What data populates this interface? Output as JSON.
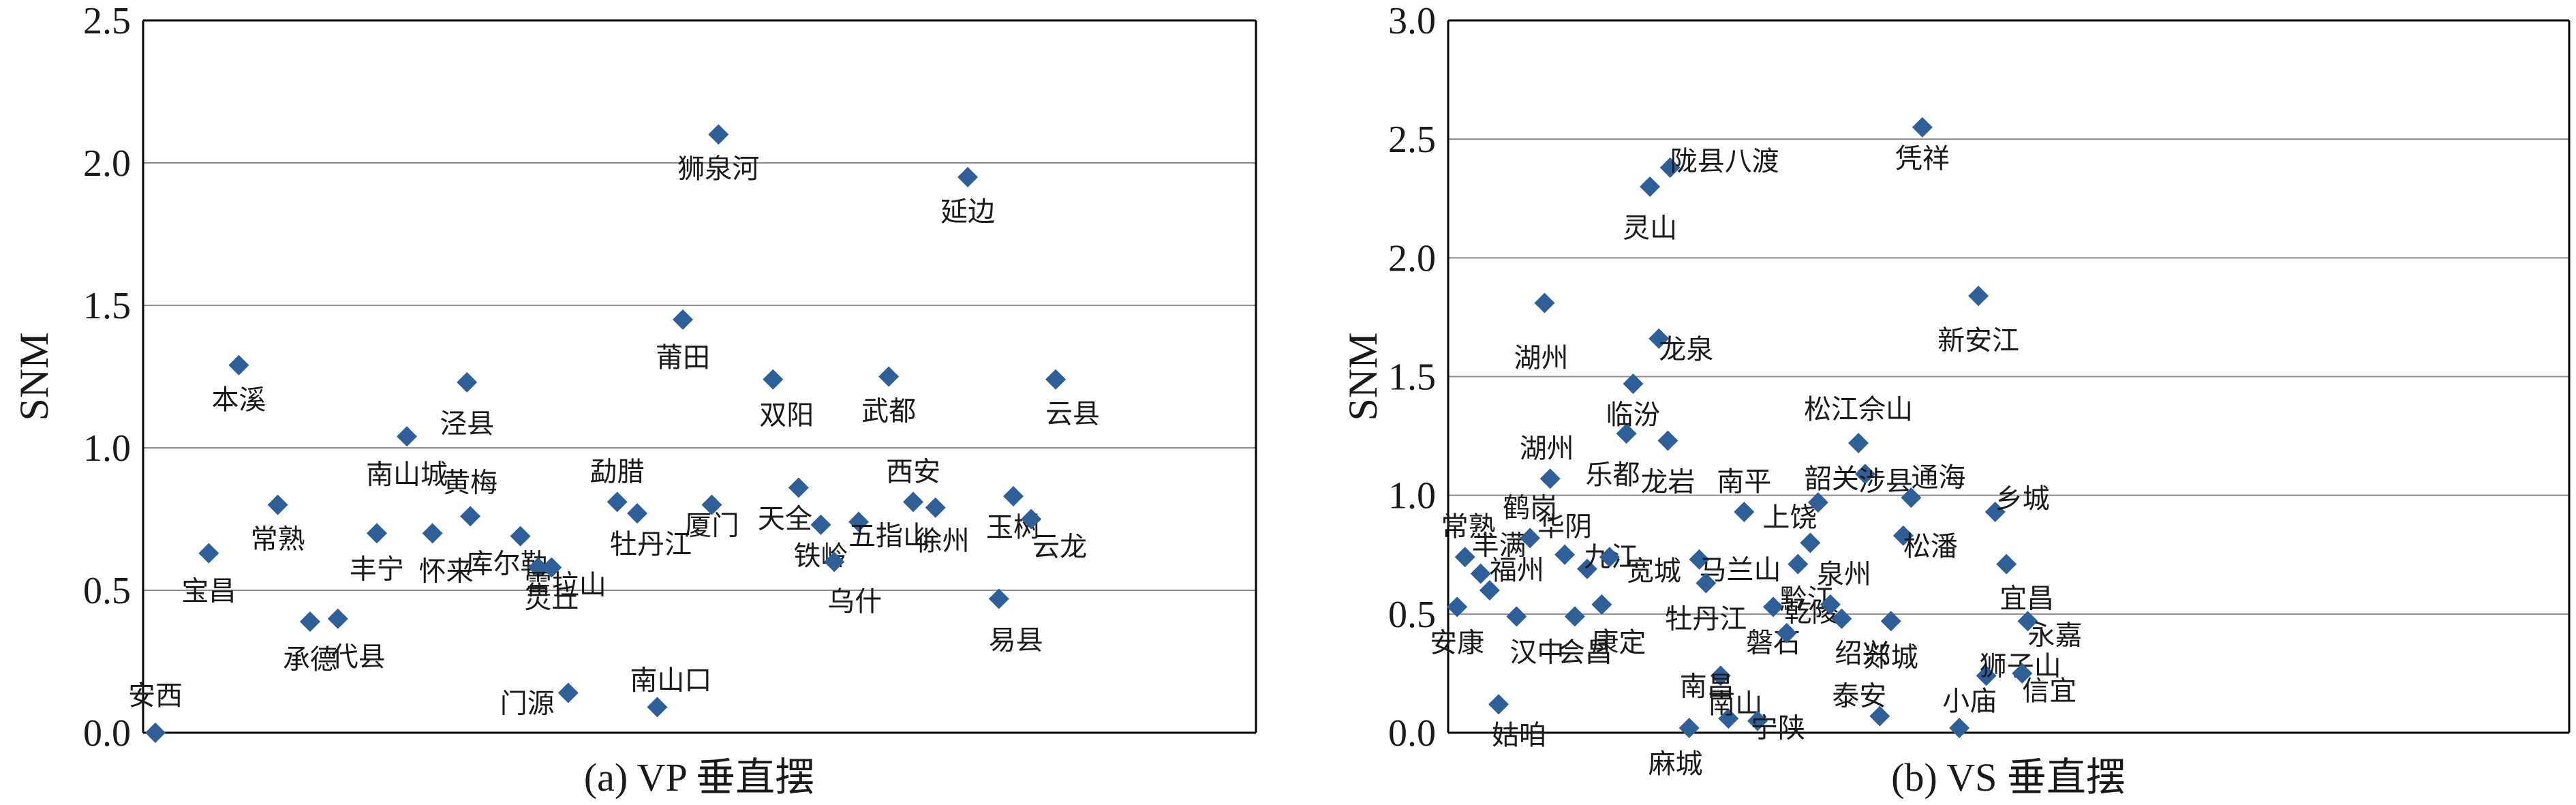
{
  "chart_data": [
    {
      "type": "scatter",
      "caption": "(a) VP 垂直摆",
      "ylabel": "SNM",
      "ylim": [
        0,
        2.5
      ],
      "yticks": [
        "0.0",
        "0.5",
        "1.0",
        "1.5",
        "2.0",
        "2.5"
      ],
      "grid": true,
      "marker_color": "#2f5f98",
      "points": [
        {
          "name": "安西",
          "y": 0.0
        },
        {
          "name": "宝昌",
          "y": 0.63
        },
        {
          "name": "本溪",
          "y": 1.29
        },
        {
          "name": "常熟",
          "y": 0.8
        },
        {
          "name": "承德",
          "y": 0.39
        },
        {
          "name": "代县",
          "y": 0.4
        },
        {
          "name": "丰宁",
          "y": 0.7
        },
        {
          "name": "南山城",
          "y": 1.04
        },
        {
          "name": "怀来",
          "y": 0.7
        },
        {
          "name": "黄梅",
          "y": 0.76
        },
        {
          "name": "泾县",
          "y": 1.23
        },
        {
          "name": "库尔勒",
          "y": 0.69
        },
        {
          "name": "霍拉山",
          "y": 0.58
        },
        {
          "name": "灵丘",
          "y": 0.58
        },
        {
          "name": "门源",
          "y": 0.14
        },
        {
          "name": "勐腊",
          "y": 0.81
        },
        {
          "name": "牡丹江",
          "y": 0.77
        },
        {
          "name": "南山口",
          "y": 0.09
        },
        {
          "name": "莆田",
          "y": 1.45
        },
        {
          "name": "厦门",
          "y": 0.8
        },
        {
          "name": "狮泉河",
          "y": 2.1
        },
        {
          "name": "双阳",
          "y": 1.24
        },
        {
          "name": "天全",
          "y": 0.86
        },
        {
          "name": "铁岭",
          "y": 0.73
        },
        {
          "name": "乌什",
          "y": 0.6
        },
        {
          "name": "五指山",
          "y": 0.74
        },
        {
          "name": "武都",
          "y": 1.25
        },
        {
          "name": "西安",
          "y": 0.81
        },
        {
          "name": "徐州",
          "y": 0.79
        },
        {
          "name": "延边",
          "y": 1.95
        },
        {
          "name": "易县",
          "y": 0.47
        },
        {
          "name": "玉树",
          "y": 0.83
        },
        {
          "name": "云龙",
          "y": 0.75
        },
        {
          "name": "云县",
          "y": 1.24
        }
      ]
    },
    {
      "type": "scatter",
      "caption": "(b) VS 垂直摆",
      "ylabel": "SNM",
      "ylim": [
        0,
        3.0
      ],
      "yticks": [
        "0.0",
        "0.5",
        "1.0",
        "1.5",
        "2.0",
        "2.5",
        "3.0"
      ],
      "grid": true,
      "marker_color": "#2f5f98",
      "points": [
        {
          "name": "安康",
          "y": 0.53
        },
        {
          "name": "常熟",
          "y": 0.74
        },
        {
          "name": "丰满",
          "y": 0.67
        },
        {
          "name": "福州",
          "y": 0.6
        },
        {
          "name": "姑咱",
          "y": 0.12
        },
        {
          "name": "汉中",
          "y": 0.49
        },
        {
          "name": "鹤岗",
          "y": 0.82
        },
        {
          "name": "湖州",
          "y": 1.81
        },
        {
          "name": "湖州",
          "y": 1.07
        },
        {
          "name": "华阴",
          "y": 0.75
        },
        {
          "name": "会昌",
          "y": 0.49
        },
        {
          "name": "九江",
          "y": 0.69
        },
        {
          "name": "康定",
          "y": 0.54
        },
        {
          "name": "宽城",
          "y": 0.74
        },
        {
          "name": "乐都",
          "y": 1.26
        },
        {
          "name": "临汾",
          "y": 1.47
        },
        {
          "name": "灵山",
          "y": 2.3
        },
        {
          "name": "龙泉",
          "y": 1.66
        },
        {
          "name": "龙岩",
          "y": 1.23
        },
        {
          "name": "陇县八渡",
          "y": 2.38
        },
        {
          "name": "麻城",
          "y": 0.02
        },
        {
          "name": "马兰山",
          "y": 0.73
        },
        {
          "name": "牡丹江",
          "y": 0.63
        },
        {
          "name": "南昌",
          "y": 0.24
        },
        {
          "name": "南山",
          "y": 0.06
        },
        {
          "name": "南平",
          "y": 0.93
        },
        {
          "name": "宁陕",
          "y": 0.05
        },
        {
          "name": "磐石",
          "y": 0.53
        },
        {
          "name": "黔江",
          "y": 0.42
        },
        {
          "name": "乾陵",
          "y": 0.71
        },
        {
          "name": "上饶",
          "y": 0.8
        },
        {
          "name": "韶关",
          "y": 0.97
        },
        {
          "name": "泉州",
          "y": 0.54
        },
        {
          "name": "绍兴",
          "y": 0.48
        },
        {
          "name": "松江佘山",
          "y": 1.22
        },
        {
          "name": "涉县",
          "y": 1.09
        },
        {
          "name": "泰安",
          "y": 0.07
        },
        {
          "name": "郯城",
          "y": 0.47
        },
        {
          "name": "松潘",
          "y": 0.83
        },
        {
          "name": "通海",
          "y": 0.99
        },
        {
          "name": "凭祥",
          "y": 2.55
        },
        {
          "name": "小庙",
          "y": 0.02
        },
        {
          "name": "狮子山",
          "y": 0.24
        },
        {
          "name": "新安江",
          "y": 1.84
        },
        {
          "name": "乡城",
          "y": 0.93
        },
        {
          "name": "宜昌",
          "y": 0.71
        },
        {
          "name": "信宜",
          "y": 0.25
        },
        {
          "name": "永嘉",
          "y": 0.47
        }
      ]
    }
  ]
}
